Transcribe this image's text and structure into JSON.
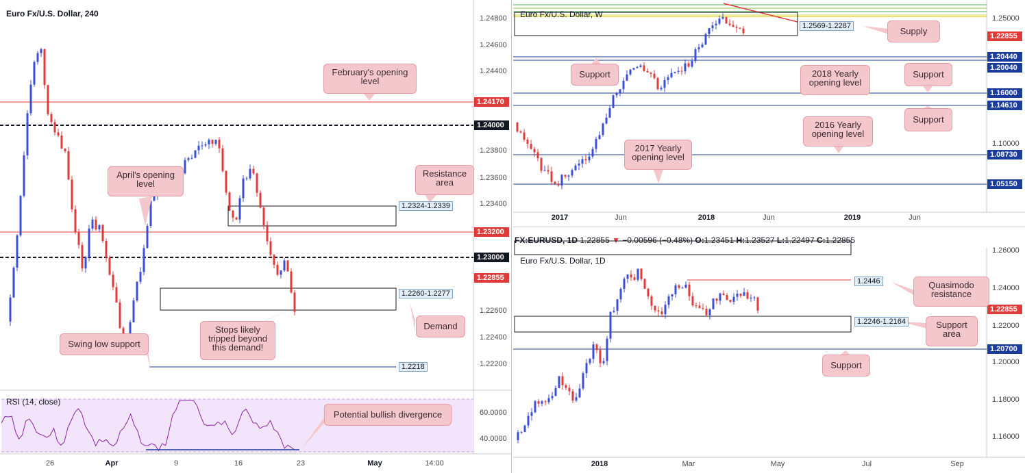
{
  "panels": {
    "h4": {
      "title": "Euro Fx/U.S. Dollar, 240",
      "y_ticks": [
        "1.24800",
        "1.24600",
        "1.24400",
        "1.23800",
        "1.23600",
        "1.23400",
        "1.22600",
        "1.22400",
        "1.22200"
      ],
      "x_ticks": [
        "26",
        "Apr",
        "9",
        "16",
        "23",
        "May",
        "14:00"
      ],
      "x_ticks_bold": [
        "Apr",
        "May"
      ],
      "price_tags": [
        {
          "label": "1.24170",
          "color": "#e03b3b"
        },
        {
          "label": "1.24000",
          "color": "#131722"
        },
        {
          "label": "1.23200",
          "color": "#e03b3b"
        },
        {
          "label": "1.23000",
          "color": "#131722"
        },
        {
          "label": "1.22855",
          "color": "#e03b3b"
        }
      ],
      "zones": [
        {
          "label": "1.2324-1.2339"
        },
        {
          "label": "1.2260-1.2277"
        },
        {
          "label": "1.2218"
        }
      ],
      "callouts": {
        "feb": "February's opening level",
        "april": "April's opening level",
        "resistance": "Resistance area",
        "demand": "Demand",
        "stops": "Stops likely tripped beyond this demand!",
        "swing": "Swing low support",
        "divergence": "Potential bullish divergence"
      },
      "rsi": {
        "title": "RSI (14, close)",
        "y_ticks": [
          "60.0000",
          "40.0000"
        ]
      }
    },
    "weekly": {
      "title": "Euro Fx/U.S. Dollar, W",
      "y_ticks": [
        "1.25000",
        "1.10000"
      ],
      "x_ticks": [
        "2017",
        "Jun",
        "2018",
        "Jun",
        "2019",
        "Jun"
      ],
      "x_ticks_bold": [
        "2017",
        "2018",
        "2019"
      ],
      "price_tags": [
        {
          "label": "1.22855",
          "color": "#e03b3b"
        },
        {
          "label": "1.20440",
          "color": "#1a3c9c"
        },
        {
          "label": "1.20040",
          "color": "#1a3c9c"
        },
        {
          "label": "1.16000",
          "color": "#1a3c9c"
        },
        {
          "label": "1.14610",
          "color": "#1a3c9c"
        },
        {
          "label": "1.08730",
          "color": "#1a3c9c"
        },
        {
          "label": "1.05150",
          "color": "#1a3c9c"
        }
      ],
      "zone_label": "1.2569-1.2287",
      "callouts": {
        "supply": "Supply",
        "support1": "Support",
        "yearly2018": "2018 Yearly opening level",
        "support2": "Support",
        "support3": "Support",
        "yearly2016": "2016 Yearly opening level",
        "yearly2017": "2017 Yearly opening level"
      }
    },
    "daily": {
      "title": "Euro Fx/U.S. Dollar, 1D",
      "y_ticks": [
        "1.26000",
        "1.24000",
        "1.22000",
        "1.20000",
        "1.18000",
        "1.16000"
      ],
      "x_ticks": [
        "2018",
        "Mar",
        "May",
        "Jul",
        "Sep"
      ],
      "x_ticks_bold": [
        "2018"
      ],
      "price_tags": [
        {
          "label": "1.22855",
          "color": "#e03b3b"
        },
        {
          "label": "1.20700",
          "color": "#1a3c9c"
        }
      ],
      "zone_labels": [
        "1.2446",
        "1.2246-1.2164"
      ],
      "callouts": {
        "quasimodo": "Quasimodo resistance",
        "support_area": "Support area",
        "support": "Support"
      }
    }
  },
  "infobar": {
    "symbol": "FX:EURUSD, 1D",
    "last": "1.22855",
    "change": "−0.00596 (−0.48%)",
    "open_label": "O:",
    "open": "1.23451",
    "high_label": "H:",
    "high": "1.23527",
    "low_label": "L:",
    "low": "1.22497",
    "close_label": "C:",
    "close": "1.22855"
  },
  "colors": {
    "bull": "#3b4fd6",
    "bear": "#e03b3b",
    "support_line": "#1a3c9c",
    "resistance_line": "#e03b3b",
    "rsi_line": "#8e24aa",
    "rsi_band": "#f1e4fb"
  },
  "chart_data": [
    {
      "type": "candlestick",
      "title": "Euro Fx/U.S. Dollar, 240",
      "horizontal_levels": [
        1.2417,
        1.24,
        1.232,
        1.23,
        1.2218
      ],
      "zones": [
        [
          1.2324,
          1.2339
        ],
        [
          1.226,
          1.2277
        ]
      ],
      "last_price": 1.22855,
      "ylim": [
        1.2213,
        1.2492
      ],
      "x_range": [
        "Mar 21",
        "May 17"
      ]
    },
    {
      "type": "line",
      "title": "RSI (14, close)",
      "ylim": [
        30,
        70
      ],
      "band": [
        30,
        70
      ]
    },
    {
      "type": "candlestick",
      "title": "Euro Fx/U.S. Dollar, W",
      "horizontal_levels": [
        1.2044,
        1.2004,
        1.16,
        1.1461,
        1.0873,
        1.0515
      ],
      "zones": [
        [
          1.2287,
          1.2569
        ]
      ],
      "last_price": 1.22855,
      "x_range": [
        "Nov 2016",
        "Sep 2019"
      ]
    },
    {
      "type": "candlestick",
      "title": "Euro Fx/U.S. Dollar, 1D",
      "horizontal_levels": [
        1.2446,
        1.207
      ],
      "zones": [
        [
          1.2164,
          1.2246
        ]
      ],
      "last_price": 1.22855,
      "ylim": [
        1.15,
        1.265
      ],
      "x_range": [
        "Nov 2017",
        "Sep 2018"
      ]
    }
  ]
}
